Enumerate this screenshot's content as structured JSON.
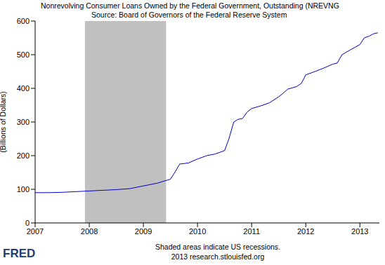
{
  "chart_data": {
    "type": "line",
    "title": "Nonrevolving Consumer Loans Owned by the Federal Government, Outstanding (NREVNG",
    "subtitle": "Source: Board of Governors of the Federal Reserve System",
    "y_label": "(Billions of Dollars)",
    "notes": [
      "Shaded areas indicate US recessions.",
      "2013 research.stlouisfed.org"
    ],
    "logo": "FRED",
    "recessions": [
      [
        2007.92,
        2009.42
      ]
    ],
    "x": [
      2007.0,
      2007.25,
      2007.5,
      2007.75,
      2008.0,
      2008.25,
      2008.5,
      2008.75,
      2009.0,
      2009.25,
      2009.5,
      2009.58,
      2009.67,
      2009.83,
      2010.0,
      2010.17,
      2010.33,
      2010.5,
      2010.58,
      2010.67,
      2010.75,
      2010.83,
      2010.92,
      2011.0,
      2011.17,
      2011.33,
      2011.5,
      2011.58,
      2011.67,
      2011.83,
      2011.92,
      2012.0,
      2012.17,
      2012.33,
      2012.5,
      2012.58,
      2012.67,
      2012.83,
      2013.0,
      2013.08,
      2013.17,
      2013.25,
      2013.33
    ],
    "series": [
      {
        "name": "NREVNG",
        "color": "#0000cc",
        "values": [
          90,
          90,
          91,
          93,
          95,
          97,
          99,
          102,
          110,
          118,
          130,
          150,
          175,
          178,
          190,
          200,
          205,
          215,
          250,
          300,
          308,
          310,
          330,
          340,
          348,
          357,
          375,
          385,
          398,
          405,
          415,
          440,
          450,
          460,
          472,
          475,
          500,
          515,
          530,
          550,
          555,
          562,
          565
        ]
      }
    ],
    "xlim": [
      2007,
      2013.36
    ],
    "xticks": [
      2007,
      2008,
      2009,
      2010,
      2011,
      2012,
      2013
    ],
    "ylim": [
      0,
      600
    ],
    "yticks": [
      0,
      100,
      200,
      300,
      400,
      500,
      600
    ],
    "grid": false
  }
}
